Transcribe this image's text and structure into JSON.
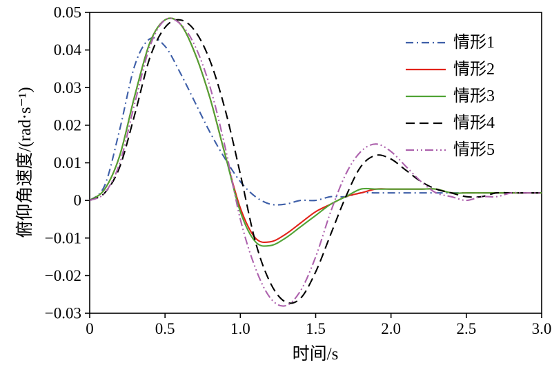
{
  "figure": {
    "background": "#ffffff",
    "frame_color": "#000000",
    "text_color": "#000000"
  },
  "chart_data": {
    "type": "line",
    "title": "",
    "xlabel": "时间/s",
    "ylabel": "俯仰角速度/(rad·s⁻¹)",
    "xlim": [
      0,
      3
    ],
    "ylim": [
      -0.03,
      0.05
    ],
    "xticks": [
      0,
      0.5,
      1,
      1.5,
      2,
      2.5,
      3
    ],
    "xtick_labels": [
      "0",
      "0.5",
      "1.0",
      "1.5",
      "2.0",
      "2.5",
      "3.0"
    ],
    "yticks": [
      -0.03,
      -0.02,
      -0.01,
      0,
      0.01,
      0.02,
      0.03,
      0.04,
      0.05
    ],
    "ytick_labels": [
      "−0.03",
      "−0.02",
      "−0.01",
      "0",
      "0.01",
      "0.02",
      "0.03",
      "0.04",
      "0.05"
    ],
    "grid": false,
    "legend_position": "top-right",
    "x": [
      0,
      0.1,
      0.2,
      0.3,
      0.4,
      0.5,
      0.6,
      0.7,
      0.8,
      0.9,
      1,
      1.1,
      1.2,
      1.3,
      1.4,
      1.5,
      1.6,
      1.7,
      1.8,
      1.9,
      2,
      2.1,
      2.2,
      2.3,
      2.4,
      2.5,
      2.6,
      2.7,
      2.8,
      2.9,
      3
    ],
    "series": [
      {
        "name": "情形1",
        "color": "#3e5fa8",
        "style": "dashdot",
        "values": [
          0,
          0.004,
          0.019,
          0.036,
          0.043,
          0.041,
          0.034,
          0.026,
          0.018,
          0.011,
          0.005,
          0.001,
          -0.001,
          -0.001,
          0,
          0,
          0.001,
          0.001,
          0.002,
          0.002,
          0.002,
          0.002,
          0.002,
          0.002,
          0.002,
          0.002,
          0.002,
          0.002,
          0.002,
          0.002,
          0.002
        ]
      },
      {
        "name": "情形2",
        "color": "#e2231a",
        "style": "solid",
        "values": [
          0,
          0.003,
          0.012,
          0.028,
          0.042,
          0.048,
          0.047,
          0.039,
          0.027,
          0.012,
          -0.002,
          -0.01,
          -0.011,
          -0.009,
          -0.006,
          -0.003,
          -0.001,
          0.001,
          0.002,
          0.003,
          0.003,
          0.003,
          0.003,
          0.003,
          0.002,
          0.002,
          0.002,
          0.002,
          0.002,
          0.002,
          0.002
        ]
      },
      {
        "name": "情形3",
        "color": "#50a334",
        "style": "solid",
        "values": [
          0,
          0.003,
          0.012,
          0.028,
          0.042,
          0.048,
          0.047,
          0.039,
          0.027,
          0.012,
          -0.003,
          -0.011,
          -0.012,
          -0.01,
          -0.007,
          -0.004,
          -0.001,
          0.001,
          0.003,
          0.003,
          0.003,
          0.003,
          0.003,
          0.003,
          0.002,
          0.002,
          0.002,
          0.002,
          0.002,
          0.002,
          0.002
        ]
      },
      {
        "name": "情形4",
        "color": "#000000",
        "style": "dashed",
        "values": [
          0,
          0.002,
          0.009,
          0.023,
          0.038,
          0.046,
          0.048,
          0.045,
          0.037,
          0.024,
          0.007,
          -0.011,
          -0.022,
          -0.027,
          -0.026,
          -0.019,
          -0.009,
          0.001,
          0.009,
          0.012,
          0.011,
          0.008,
          0.005,
          0.003,
          0.002,
          0.001,
          0.001,
          0.002,
          0.002,
          0.002,
          0.002
        ]
      },
      {
        "name": "情形5",
        "color": "#ad62ad",
        "style": "dashdotdot",
        "values": [
          0,
          0.002,
          0.01,
          0.026,
          0.041,
          0.048,
          0.047,
          0.041,
          0.03,
          0.014,
          -0.005,
          -0.018,
          -0.026,
          -0.028,
          -0.024,
          -0.015,
          -0.003,
          0.007,
          0.013,
          0.015,
          0.013,
          0.009,
          0.005,
          0.002,
          0.001,
          0,
          0.001,
          0.001,
          0.002,
          0.002,
          0.002
        ]
      }
    ]
  }
}
